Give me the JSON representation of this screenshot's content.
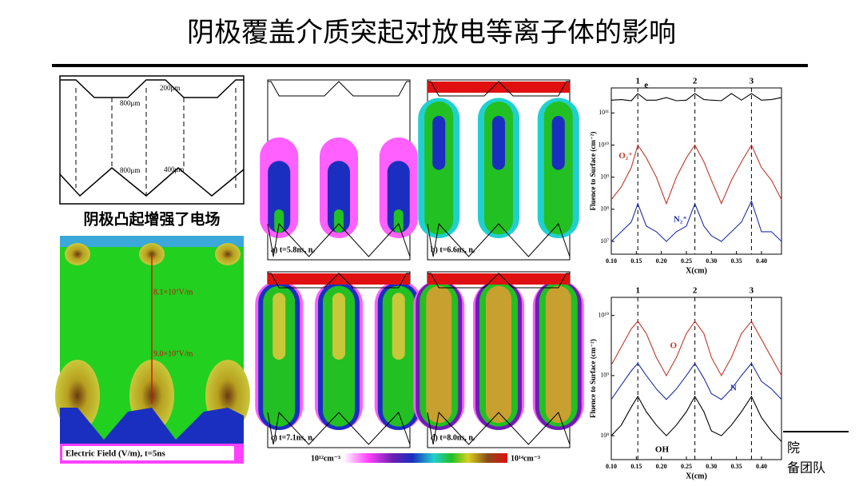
{
  "title": "阴极覆盖介质突起对放电等离子体的影响",
  "geometry": {
    "labels": [
      "200μm",
      "800μm",
      "800μm",
      "400μm"
    ]
  },
  "field": {
    "title": "阴极凸起增强了电场",
    "labels": [
      "8.1×10⁷V/m",
      "9.0×10⁷V/m"
    ],
    "caption": "Electric Field (V/m), t=5ns"
  },
  "panels": {
    "captions": [
      "a) t=5.8ns, nₑ",
      "b) t=6.6ns, nₑ",
      "c) t=7.1ns, nₑ",
      "d) t=8.0ns, nₑ"
    ],
    "colorbar": [
      "10¹²cm⁻³",
      "10¹⁴cm⁻³"
    ]
  },
  "chart_data": [
    {
      "type": "line",
      "ylabel": "Fluence to Surface (cm⁻²)",
      "xlabel": "X(cm)",
      "log_y": true,
      "x": [
        0.1,
        0.12,
        0.14,
        0.153,
        0.17,
        0.19,
        0.21,
        0.23,
        0.25,
        0.267,
        0.285,
        0.3,
        0.32,
        0.34,
        0.36,
        0.38,
        0.4,
        0.42,
        0.44
      ],
      "series": [
        {
          "name": "e",
          "color": "#000000",
          "values": [
            250000000000.0,
            260000000000.0,
            240000000000.0,
            400000000000.0,
            250000000000.0,
            250000000000.0,
            300000000000.0,
            240000000000.0,
            250000000000.0,
            400000000000.0,
            260000000000.0,
            250000000000.0,
            240000000000.0,
            400000000000.0,
            250000000000.0,
            400000000000.0,
            250000000000.0,
            260000000000.0,
            300000000000.0
          ]
        },
        {
          "name": "O₂⁺",
          "color": "#c0392b",
          "values": [
            200000000.0,
            500000000.0,
            2000000000.0,
            10000000000.0,
            4000000000.0,
            1000000000.0,
            150000000.0,
            1000000000.0,
            4000000000.0,
            10000000000.0,
            3000000000.0,
            800000000.0,
            150000000.0,
            800000000.0,
            3000000000.0,
            10000000000.0,
            2000000000.0,
            800000000.0,
            200000000.0
          ]
        },
        {
          "name": "N₂⁺",
          "color": "#1f2fa8",
          "values": [
            10000000.0,
            20000000.0,
            40000000.0,
            150000000.0,
            30000000.0,
            20000000.0,
            10000000.0,
            20000000.0,
            30000000.0,
            150000000.0,
            30000000.0,
            15000000.0,
            10000000.0,
            20000000.0,
            40000000.0,
            180000000.0,
            20000000.0,
            20000000.0,
            10000000.0
          ]
        }
      ],
      "xlim": [
        0.1,
        0.44
      ],
      "ylim": [
        4000000.0,
        600000000000.0
      ],
      "xticks": [
        {
          "value": 0.1,
          "label": "0.10"
        },
        {
          "value": 0.15,
          "label": "0.15"
        },
        {
          "value": 0.2,
          "label": "0.20"
        },
        {
          "value": 0.25,
          "label": "0.25"
        },
        {
          "value": 0.3,
          "label": "0.30"
        },
        {
          "value": 0.35,
          "label": "0.35"
        },
        {
          "value": 0.4,
          "label": "0.40"
        }
      ],
      "yticks": [
        {
          "value": 10000000.0,
          "label": "10⁷"
        },
        {
          "value": 100000000.0,
          "label": "10⁸"
        },
        {
          "value": 1000000000.0,
          "label": "10⁹"
        },
        {
          "value": 10000000000.0,
          "label": "10¹⁰"
        },
        {
          "value": 100000000000.0,
          "label": "10¹¹"
        }
      ],
      "markers": {
        "x": [
          0.153,
          0.267,
          0.38
        ],
        "labels": [
          "1",
          "2",
          "3"
        ]
      }
    },
    {
      "type": "line",
      "ylabel": "Fluence to Surface (cm⁻²)",
      "xlabel": "X(cm)",
      "log_y": true,
      "x": [
        0.1,
        0.12,
        0.14,
        0.153,
        0.17,
        0.19,
        0.21,
        0.23,
        0.25,
        0.267,
        0.285,
        0.3,
        0.32,
        0.34,
        0.36,
        0.38,
        0.4,
        0.42,
        0.44
      ],
      "series": [
        {
          "name": "O",
          "color": "#c0392b",
          "values": [
            1500000000.0,
            3000000000.0,
            6000000000.0,
            8000000000.0,
            5000000000.0,
            2000000000.0,
            1000000000.0,
            2000000000.0,
            5000000000.0,
            8000000000.0,
            5000000000.0,
            2000000000.0,
            1000000000.0,
            2000000000.0,
            5000000000.0,
            8000000000.0,
            4000000000.0,
            2000000000.0,
            1000000000.0
          ]
        },
        {
          "name": "N",
          "color": "#1f2fa8",
          "values": [
            400000000.0,
            700000000.0,
            1200000000.0,
            1600000000.0,
            1000000000.0,
            600000000.0,
            400000000.0,
            600000000.0,
            1000000000.0,
            1600000000.0,
            900000000.0,
            500000000.0,
            400000000.0,
            600000000.0,
            1000000000.0,
            1600000000.0,
            800000000.0,
            600000000.0,
            400000000.0
          ]
        },
        {
          "name": "OH",
          "color": "#000000",
          "values": [
            100000000.0,
            150000000.0,
            300000000.0,
            450000000.0,
            250000000.0,
            150000000.0,
            100000000.0,
            150000000.0,
            250000000.0,
            450000000.0,
            250000000.0,
            120000000.0,
            100000000.0,
            150000000.0,
            250000000.0,
            450000000.0,
            200000000.0,
            120000000.0,
            80000000.0
          ]
        }
      ],
      "xlim": [
        0.1,
        0.44
      ],
      "ylim": [
        40000000.0,
        20000000000.0
      ],
      "xticks": [
        {
          "value": 0.1,
          "label": "0.10"
        },
        {
          "value": 0.15,
          "label": "0.15"
        },
        {
          "value": 0.2,
          "label": "0.20"
        },
        {
          "value": 0.25,
          "label": "0.25"
        },
        {
          "value": 0.3,
          "label": "0.30"
        },
        {
          "value": 0.35,
          "label": "0.35"
        },
        {
          "value": 0.4,
          "label": "0.40"
        }
      ],
      "yticks": [
        {
          "value": 100000000.0,
          "label": "10⁸"
        },
        {
          "value": 1000000000.0,
          "label": "10⁹"
        },
        {
          "value": 10000000000.0,
          "label": "10¹⁰"
        }
      ],
      "markers": {
        "x": [
          0.153,
          0.267,
          0.38
        ],
        "labels": [
          "1",
          "2",
          "3"
        ]
      }
    }
  ],
  "footer": [
    "院",
    "备团队"
  ]
}
